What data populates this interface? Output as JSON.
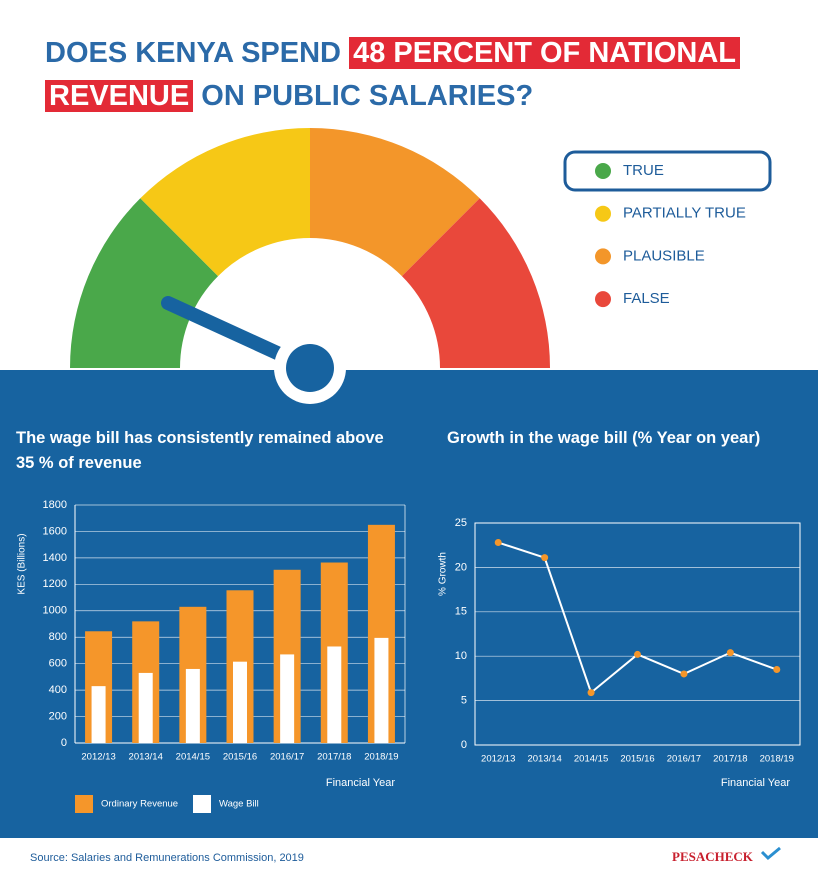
{
  "header": {
    "title_parts": [
      "DOES KENYA SPEND",
      "48 PERCENT OF NATIONAL",
      "REVENUE",
      "ON PUBLIC SALARIES?"
    ]
  },
  "gauge": {
    "items": [
      {
        "label": "TRUE",
        "color": "#4aa84a"
      },
      {
        "label": "PARTIALLY TRUE",
        "color": "#f6c816"
      },
      {
        "label": "PLAUSIBLE",
        "color": "#f3962a"
      },
      {
        "label": "FALSE",
        "color": "#e9483b"
      }
    ]
  },
  "chart_data": [
    {
      "type": "bar",
      "title": "The wage bill has consistently remained above 35 % of revenue",
      "ylabel": "KES (Billions)",
      "xlabel": "Financial Year",
      "categories": [
        "2012/13",
        "2013/14",
        "2014/15",
        "2015/16",
        "2016/17",
        "2017/18",
        "2018/19"
      ],
      "series": [
        {
          "name": "Ordinary Revenue",
          "color": "#f5962a",
          "values": [
            845,
            920,
            1030,
            1155,
            1310,
            1365,
            1650
          ]
        },
        {
          "name": "Wage Bill",
          "color": "#ffffff",
          "values": [
            430,
            530,
            560,
            615,
            670,
            730,
            795
          ]
        }
      ],
      "ylim": [
        0,
        1800
      ],
      "yticks": [
        0,
        200,
        400,
        600,
        800,
        1000,
        1200,
        1400,
        1600,
        1800
      ],
      "grid": true
    },
    {
      "type": "line",
      "title": "Growth in the wage bill (% Year on year)",
      "ylabel": "% Growth",
      "xlabel": "Financial Year",
      "categories": [
        "2012/13",
        "2013/14",
        "2014/15",
        "2015/16",
        "2016/17",
        "2017/18",
        "2018/19"
      ],
      "series": [
        {
          "name": "Growth",
          "color": "#ffffff",
          "values": [
            22.8,
            21.1,
            5.9,
            10.2,
            8.0,
            10.4,
            8.5
          ]
        }
      ],
      "marker_color": "#f5962a",
      "ylim": [
        0,
        25
      ],
      "yticks": [
        0,
        5,
        10,
        15,
        20,
        25
      ],
      "grid": true
    }
  ],
  "footer": {
    "source": "Source: Salaries and Remunerations Commission, 2019",
    "logo": "PESACHECK"
  }
}
